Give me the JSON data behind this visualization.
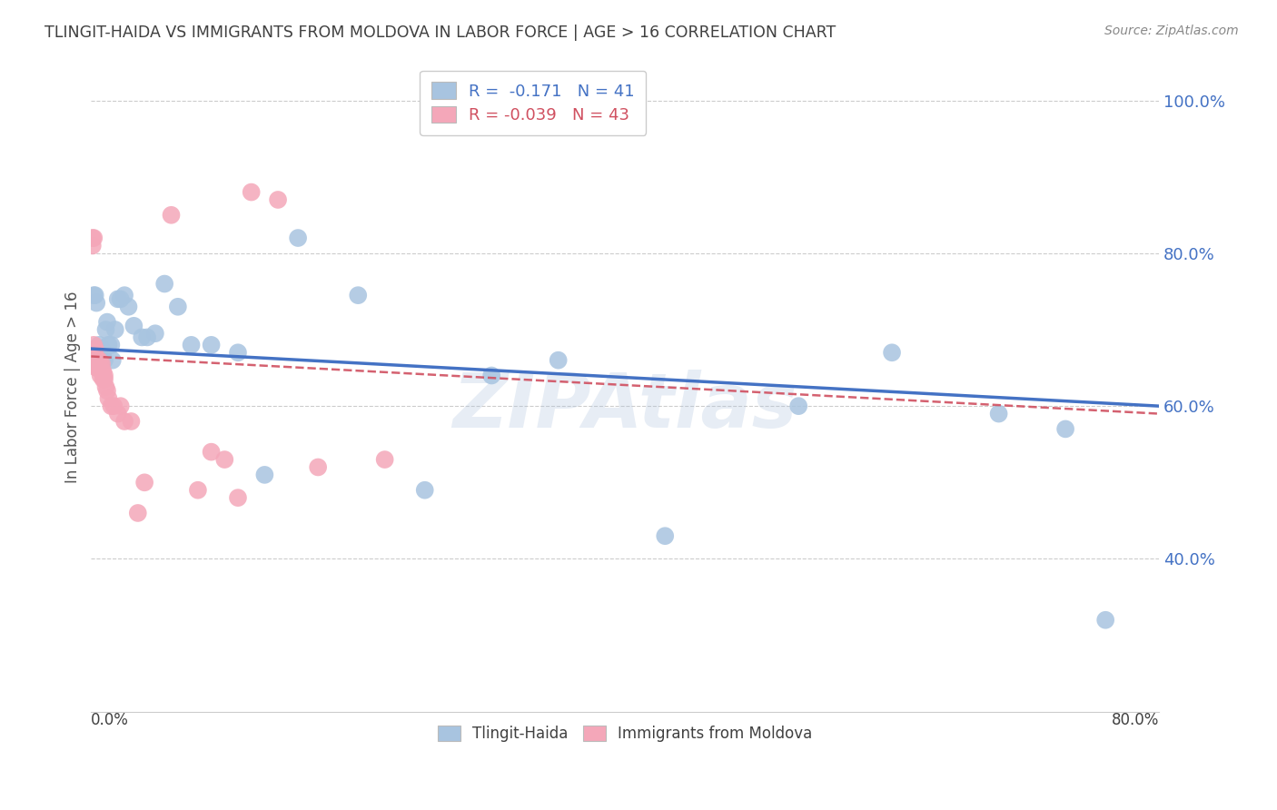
{
  "title": "TLINGIT-HAIDA VS IMMIGRANTS FROM MOLDOVA IN LABOR FORCE | AGE > 16 CORRELATION CHART",
  "source": "Source: ZipAtlas.com",
  "ylabel": "In Labor Force | Age > 16",
  "xlim": [
    0.0,
    0.8
  ],
  "ylim": [
    0.2,
    1.05
  ],
  "yticks": [
    0.4,
    0.6,
    0.8,
    1.0
  ],
  "ytick_labels": [
    "40.0%",
    "60.0%",
    "80.0%",
    "100.0%"
  ],
  "legend_blue_r": "-0.171",
  "legend_blue_n": "41",
  "legend_pink_r": "-0.039",
  "legend_pink_n": "43",
  "blue_color": "#a8c4e0",
  "pink_color": "#f4a7b9",
  "blue_line_color": "#4472c4",
  "pink_line_color": "#d05060",
  "axis_label_color": "#4472c4",
  "title_color": "#404040",
  "watermark": "ZIPAtlas",
  "blue_line_x0": 0.0,
  "blue_line_y0": 0.675,
  "blue_line_x1": 0.8,
  "blue_line_y1": 0.6,
  "pink_line_x0": 0.0,
  "pink_line_y0": 0.665,
  "pink_line_x1": 0.8,
  "pink_line_y1": 0.59,
  "blue_x": [
    0.001,
    0.002,
    0.003,
    0.004,
    0.005,
    0.006,
    0.006,
    0.008,
    0.009,
    0.01,
    0.011,
    0.012,
    0.013,
    0.015,
    0.016,
    0.018,
    0.02,
    0.022,
    0.025,
    0.028,
    0.032,
    0.038,
    0.042,
    0.048,
    0.055,
    0.065,
    0.075,
    0.09,
    0.11,
    0.13,
    0.155,
    0.2,
    0.25,
    0.3,
    0.35,
    0.43,
    0.53,
    0.6,
    0.68,
    0.73,
    0.76
  ],
  "blue_y": [
    0.66,
    0.745,
    0.745,
    0.735,
    0.66,
    0.68,
    0.66,
    0.675,
    0.67,
    0.66,
    0.7,
    0.71,
    0.68,
    0.68,
    0.66,
    0.7,
    0.74,
    0.74,
    0.745,
    0.73,
    0.705,
    0.69,
    0.69,
    0.695,
    0.76,
    0.73,
    0.68,
    0.68,
    0.67,
    0.51,
    0.82,
    0.745,
    0.49,
    0.64,
    0.66,
    0.43,
    0.6,
    0.67,
    0.59,
    0.57,
    0.32
  ],
  "pink_x": [
    0.001,
    0.001,
    0.001,
    0.002,
    0.002,
    0.002,
    0.003,
    0.003,
    0.003,
    0.004,
    0.004,
    0.005,
    0.005,
    0.006,
    0.006,
    0.007,
    0.007,
    0.008,
    0.008,
    0.009,
    0.009,
    0.01,
    0.01,
    0.011,
    0.012,
    0.013,
    0.015,
    0.017,
    0.02,
    0.022,
    0.025,
    0.03,
    0.035,
    0.04,
    0.06,
    0.08,
    0.09,
    0.1,
    0.11,
    0.12,
    0.14,
    0.17,
    0.22
  ],
  "pink_y": [
    0.66,
    0.82,
    0.81,
    0.68,
    0.67,
    0.82,
    0.675,
    0.66,
    0.66,
    0.66,
    0.65,
    0.66,
    0.65,
    0.66,
    0.65,
    0.655,
    0.64,
    0.655,
    0.645,
    0.645,
    0.635,
    0.64,
    0.635,
    0.625,
    0.62,
    0.61,
    0.6,
    0.6,
    0.59,
    0.6,
    0.58,
    0.58,
    0.46,
    0.5,
    0.85,
    0.49,
    0.54,
    0.53,
    0.48,
    0.88,
    0.87,
    0.52,
    0.53
  ]
}
